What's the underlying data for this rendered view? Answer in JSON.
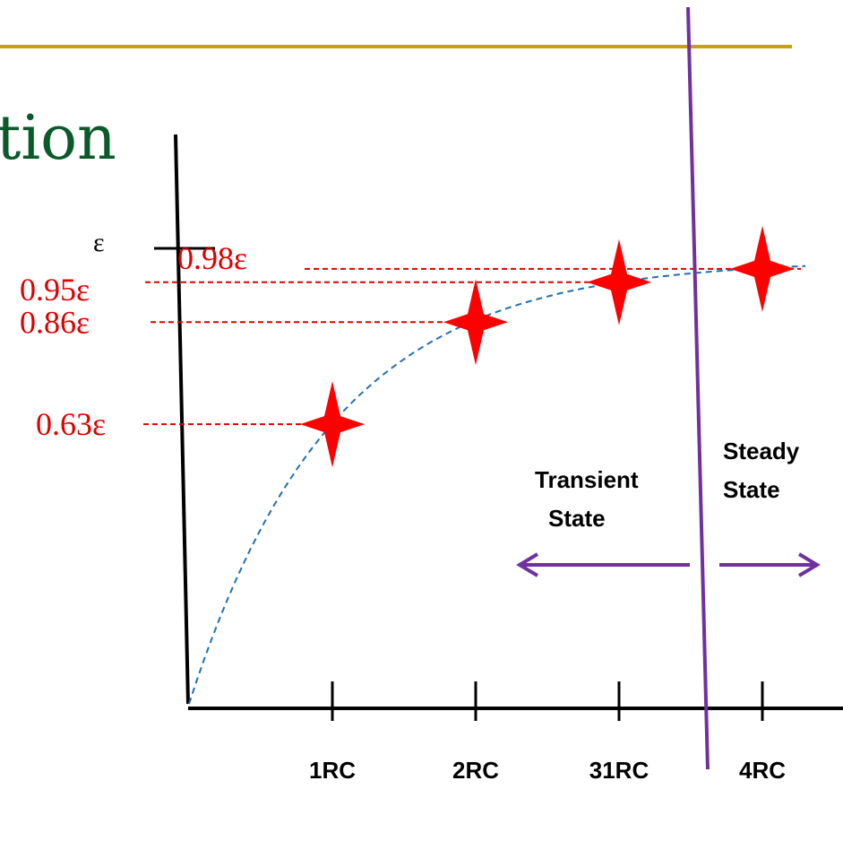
{
  "slide": {
    "title_fragment": "tion",
    "title_color": "#0b5a2a",
    "rule_color": "#c8a20e"
  },
  "chart_data": {
    "type": "line",
    "title": "",
    "xlabel": "",
    "ylabel": "",
    "y_top_label": "ε",
    "categories": [
      "1RC",
      "2RC",
      "31RC",
      "4RC"
    ],
    "series": [
      {
        "values": [
          0.63,
          0.86,
          0.95,
          0.98
        ]
      }
    ],
    "ylim": [
      0,
      1.0
    ],
    "y_markers": [
      {
        "label": "0.63ε",
        "value": 0.63
      },
      {
        "label": "0.86ε",
        "value": 0.86
      },
      {
        "label": "0.95ε",
        "value": 0.95
      },
      {
        "label": "0.98ε",
        "value": 0.98
      }
    ],
    "curve_color": "#1f6fb5",
    "marker_color": "#ff0000",
    "guide_color": "#e00000",
    "divider_color": "#7030a0",
    "regions": [
      {
        "label_line1": "Transient",
        "label_line2": "State",
        "direction": "left"
      },
      {
        "label_line1": "Steady",
        "label_line2": "State",
        "direction": "right"
      }
    ],
    "grid": false,
    "legend": "none"
  }
}
